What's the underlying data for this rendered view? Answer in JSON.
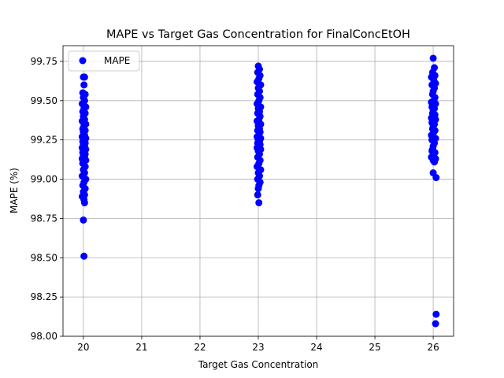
{
  "chart_data": {
    "type": "scatter",
    "title": "MAPE vs Target Gas Concentration for FinalConcEtOH",
    "xlabel": "Target Gas Concentration",
    "ylabel": "MAPE (%)",
    "xlim": [
      19.65,
      26.35
    ],
    "ylim": [
      98.0,
      99.85
    ],
    "xticks": [
      20,
      21,
      22,
      23,
      24,
      25,
      26
    ],
    "yticks": [
      98.0,
      98.25,
      98.5,
      98.75,
      99.0,
      99.25,
      99.5,
      99.75
    ],
    "ytick_labels": [
      "98.00",
      "98.25",
      "98.50",
      "98.75",
      "99.00",
      "99.25",
      "99.50",
      "99.75"
    ],
    "grid": true,
    "legend_position": "top-left",
    "point_color": "#0000ff",
    "series": [
      {
        "name": "MAPE",
        "points": [
          [
            20.0,
            99.65
          ],
          [
            20.02,
            99.65
          ],
          [
            20.01,
            99.6
          ],
          [
            19.99,
            99.55
          ],
          [
            20.03,
            99.54
          ],
          [
            20.0,
            99.52
          ],
          [
            20.02,
            99.5
          ],
          [
            19.98,
            99.48
          ],
          [
            20.04,
            99.46
          ],
          [
            20.01,
            99.45
          ],
          [
            19.99,
            99.43
          ],
          [
            20.03,
            99.42
          ],
          [
            20.0,
            99.4
          ],
          [
            20.02,
            99.38
          ],
          [
            19.98,
            99.37
          ],
          [
            20.04,
            99.35
          ],
          [
            20.01,
            99.34
          ],
          [
            19.99,
            99.32
          ],
          [
            20.03,
            99.31
          ],
          [
            20.0,
            99.3
          ],
          [
            20.02,
            99.28
          ],
          [
            19.98,
            99.27
          ],
          [
            20.04,
            99.26
          ],
          [
            20.01,
            99.25
          ],
          [
            19.99,
            99.24
          ],
          [
            20.03,
            99.23
          ],
          [
            20.0,
            99.22
          ],
          [
            20.02,
            99.21
          ],
          [
            19.98,
            99.2
          ],
          [
            20.04,
            99.19
          ],
          [
            20.01,
            99.18
          ],
          [
            19.99,
            99.17
          ],
          [
            20.03,
            99.16
          ],
          [
            20.0,
            99.15
          ],
          [
            20.02,
            99.14
          ],
          [
            19.98,
            99.13
          ],
          [
            20.04,
            99.12
          ],
          [
            20.01,
            99.11
          ],
          [
            19.99,
            99.1
          ],
          [
            20.03,
            99.08
          ],
          [
            20.0,
            99.06
          ],
          [
            20.02,
            99.04
          ],
          [
            19.98,
            99.02
          ],
          [
            20.04,
            99.0
          ],
          [
            20.01,
            98.98
          ],
          [
            19.99,
            98.96
          ],
          [
            20.03,
            98.94
          ],
          [
            20.0,
            98.92
          ],
          [
            20.02,
            98.9
          ],
          [
            19.98,
            98.89
          ],
          [
            20.01,
            98.87
          ],
          [
            20.02,
            98.85
          ],
          [
            20.0,
            98.74
          ],
          [
            20.01,
            98.51
          ],
          [
            23.0,
            99.72
          ],
          [
            23.02,
            99.7
          ],
          [
            22.99,
            99.68
          ],
          [
            23.03,
            99.66
          ],
          [
            23.01,
            99.64
          ],
          [
            22.98,
            99.62
          ],
          [
            23.04,
            99.6
          ],
          [
            23.0,
            99.58
          ],
          [
            23.02,
            99.56
          ],
          [
            22.99,
            99.54
          ],
          [
            23.03,
            99.52
          ],
          [
            23.01,
            99.5
          ],
          [
            22.98,
            99.48
          ],
          [
            23.04,
            99.46
          ],
          [
            23.0,
            99.45
          ],
          [
            23.02,
            99.43
          ],
          [
            22.99,
            99.42
          ],
          [
            23.03,
            99.4
          ],
          [
            23.01,
            99.38
          ],
          [
            22.98,
            99.37
          ],
          [
            23.04,
            99.35
          ],
          [
            23.0,
            99.34
          ],
          [
            23.02,
            99.32
          ],
          [
            22.99,
            99.31
          ],
          [
            23.03,
            99.3
          ],
          [
            23.01,
            99.28
          ],
          [
            22.98,
            99.27
          ],
          [
            23.04,
            99.26
          ],
          [
            23.0,
            99.25
          ],
          [
            23.02,
            99.24
          ],
          [
            22.99,
            99.23
          ],
          [
            23.03,
            99.22
          ],
          [
            23.01,
            99.21
          ],
          [
            22.98,
            99.2
          ],
          [
            23.04,
            99.19
          ],
          [
            23.0,
            99.18
          ],
          [
            23.02,
            99.16
          ],
          [
            22.99,
            99.14
          ],
          [
            23.03,
            99.12
          ],
          [
            23.01,
            99.1
          ],
          [
            22.98,
            99.08
          ],
          [
            23.04,
            99.06
          ],
          [
            23.0,
            99.04
          ],
          [
            23.02,
            99.02
          ],
          [
            22.99,
            99.0
          ],
          [
            23.03,
            98.98
          ],
          [
            23.01,
            98.96
          ],
          [
            23.0,
            98.94
          ],
          [
            22.99,
            98.9
          ],
          [
            23.01,
            98.85
          ],
          [
            26.0,
            99.77
          ],
          [
            26.02,
            99.71
          ],
          [
            25.99,
            99.68
          ],
          [
            26.03,
            99.66
          ],
          [
            25.97,
            99.65
          ],
          [
            26.01,
            99.63
          ],
          [
            26.04,
            99.61
          ],
          [
            25.98,
            99.6
          ],
          [
            26.02,
            99.58
          ],
          [
            26.0,
            99.56
          ],
          [
            25.99,
            99.54
          ],
          [
            26.03,
            99.52
          ],
          [
            26.01,
            99.5
          ],
          [
            25.97,
            99.49
          ],
          [
            26.04,
            99.48
          ],
          [
            25.98,
            99.46
          ],
          [
            26.02,
            99.45
          ],
          [
            26.0,
            99.44
          ],
          [
            25.99,
            99.42
          ],
          [
            26.03,
            99.41
          ],
          [
            26.01,
            99.4
          ],
          [
            25.97,
            99.39
          ],
          [
            26.04,
            99.38
          ],
          [
            25.98,
            99.36
          ],
          [
            26.02,
            99.35
          ],
          [
            26.0,
            99.34
          ],
          [
            25.99,
            99.32
          ],
          [
            26.03,
            99.31
          ],
          [
            26.01,
            99.3
          ],
          [
            25.97,
            99.28
          ],
          [
            26.04,
            99.26
          ],
          [
            25.98,
            99.25
          ],
          [
            26.02,
            99.23
          ],
          [
            26.0,
            99.21
          ],
          [
            25.99,
            99.19
          ],
          [
            26.03,
            99.17
          ],
          [
            26.01,
            99.15
          ],
          [
            25.97,
            99.14
          ],
          [
            26.04,
            99.13
          ],
          [
            26.0,
            99.12
          ],
          [
            26.02,
            99.11
          ],
          [
            25.98,
            99.18
          ],
          [
            26.0,
            99.04
          ],
          [
            26.05,
            99.01
          ],
          [
            26.05,
            98.14
          ],
          [
            26.04,
            98.08
          ]
        ]
      }
    ]
  }
}
